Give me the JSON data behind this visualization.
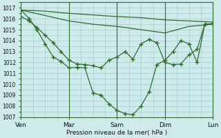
{
  "background_color": "#ceeaea",
  "grid_color": "#a8d0d0",
  "line_color": "#2d6b2d",
  "marker_color": "#2d6b2d",
  "ylim": [
    1007,
    1017.5
  ],
  "xlabel": "Pression niveau de la mer( hPa )",
  "xtick_labels": [
    "Ven",
    "Mar",
    "Sam",
    "Dim",
    "Lun"
  ],
  "xtick_positions": [
    0,
    1,
    2,
    3,
    4
  ],
  "total_x": 4,
  "series_flat_top": {
    "x": [
      0,
      0.5,
      1.0,
      1.5,
      2.0,
      2.5,
      3.0,
      3.5,
      4.0
    ],
    "y": [
      1016.8,
      1016.7,
      1016.5,
      1016.35,
      1016.2,
      1016.1,
      1015.9,
      1015.8,
      1015.7
    ]
  },
  "series_slight_decline": {
    "x": [
      0,
      0.5,
      1.0,
      1.5,
      2.0,
      2.5,
      3.0,
      3.5,
      4.0
    ],
    "y": [
      1016.8,
      1016.3,
      1015.8,
      1015.5,
      1015.3,
      1015.0,
      1014.7,
      1015.3,
      1015.5
    ]
  },
  "series_decline_markers": {
    "x": [
      0,
      0.17,
      0.33,
      0.5,
      0.67,
      0.83,
      1.0,
      1.17,
      1.33,
      1.5,
      1.67,
      1.83,
      2.0,
      2.17,
      2.33,
      2.5,
      2.67,
      2.83,
      3.0,
      3.17,
      3.33,
      3.5,
      3.67,
      3.83,
      4.0
    ],
    "y": [
      1016.2,
      1015.8,
      1015.2,
      1014.5,
      1013.8,
      1013.0,
      1012.2,
      1011.85,
      1011.8,
      1011.7,
      1011.5,
      1012.2,
      1012.5,
      1013.0,
      1012.3,
      1013.7,
      1014.1,
      1013.8,
      1012.0,
      1011.8,
      1011.85,
      1012.7,
      1013.2,
      1015.5,
      1015.55
    ]
  },
  "series_main_dip": {
    "x": [
      0,
      0.17,
      0.33,
      0.5,
      0.67,
      0.83,
      1.0,
      1.17,
      1.33,
      1.5,
      1.67,
      1.83,
      2.0,
      2.17,
      2.33,
      2.5,
      2.67,
      2.83,
      3.0,
      3.17,
      3.33,
      3.5,
      3.67,
      3.83,
      4.0
    ],
    "y": [
      1016.8,
      1016.0,
      1015.0,
      1013.7,
      1012.5,
      1012.1,
      1011.5,
      1011.55,
      1011.5,
      1009.2,
      1009.0,
      1008.2,
      1007.6,
      1007.3,
      1007.2,
      1008.0,
      1009.3,
      1011.8,
      1012.2,
      1013.0,
      1014.0,
      1013.7,
      1012.0,
      1015.5,
      1015.55
    ]
  }
}
